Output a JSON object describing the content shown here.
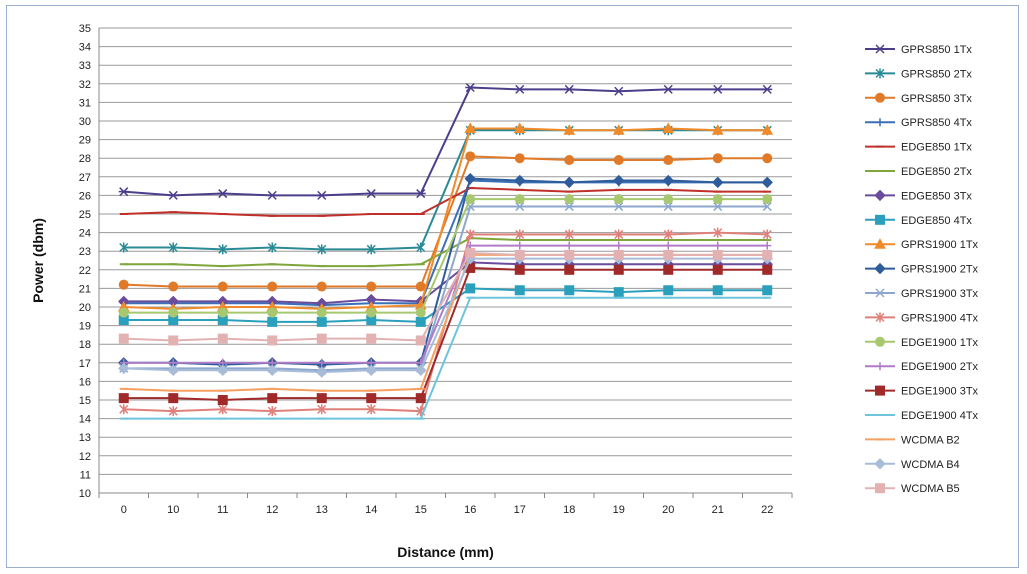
{
  "chart_data": {
    "type": "line",
    "title": "",
    "xlabel": "Distance (mm)",
    "ylabel": "Power (dbm)",
    "categories": [
      "0",
      "10",
      "11",
      "12",
      "13",
      "14",
      "15",
      "16",
      "17",
      "18",
      "19",
      "20",
      "21",
      "22"
    ],
    "ylim": [
      10,
      35
    ],
    "ytick_step": 1,
    "grid": "horizontal",
    "legend_position": "right",
    "series": [
      {
        "name": "GPRS850 1Tx",
        "color": "#4b3f8c",
        "marker": "x-star",
        "values": [
          26.2,
          26.0,
          26.1,
          26.0,
          26.0,
          26.1,
          26.1,
          31.8,
          31.7,
          31.7,
          31.6,
          31.7,
          31.7,
          31.7
        ]
      },
      {
        "name": "GPRS850 2Tx",
        "color": "#2a8b96",
        "marker": "asterisk",
        "values": [
          23.2,
          23.2,
          23.1,
          23.2,
          23.1,
          23.1,
          23.2,
          29.5,
          29.5,
          29.5,
          29.5,
          29.5,
          29.5,
          29.5
        ]
      },
      {
        "name": "GPRS850 3Tx",
        "color": "#e07a28",
        "marker": "circle",
        "values": [
          21.2,
          21.1,
          21.1,
          21.1,
          21.1,
          21.1,
          21.1,
          28.1,
          28.0,
          27.9,
          27.9,
          27.9,
          28.0,
          28.0
        ]
      },
      {
        "name": "GPRS850 4Tx",
        "color": "#3a70b8",
        "marker": "plus",
        "values": [
          20.2,
          20.2,
          20.2,
          20.2,
          20.1,
          20.2,
          20.2,
          26.8,
          26.7,
          26.7,
          26.7,
          26.7,
          26.7,
          26.7
        ]
      },
      {
        "name": "EDGE850 1Tx",
        "color": "#c0302a",
        "marker": "dash",
        "values": [
          25.0,
          25.1,
          25.0,
          24.9,
          24.9,
          25.0,
          25.0,
          26.4,
          26.3,
          26.2,
          26.3,
          26.3,
          26.2,
          26.2
        ]
      },
      {
        "name": "EDGE850 2Tx",
        "color": "#7fa63a",
        "marker": "dash",
        "values": [
          22.3,
          22.3,
          22.2,
          22.3,
          22.2,
          22.2,
          22.3,
          23.7,
          23.6,
          23.6,
          23.6,
          23.6,
          23.6,
          23.6
        ]
      },
      {
        "name": "EDGE850 3Tx",
        "color": "#6a4c9c",
        "marker": "diamond",
        "values": [
          20.3,
          20.3,
          20.3,
          20.3,
          20.2,
          20.4,
          20.3,
          22.4,
          22.3,
          22.3,
          22.3,
          22.3,
          22.3,
          22.3
        ]
      },
      {
        "name": "EDGE850 4Tx",
        "color": "#2aa0bd",
        "marker": "square",
        "values": [
          19.3,
          19.3,
          19.3,
          19.2,
          19.2,
          19.3,
          19.2,
          21.0,
          20.9,
          20.9,
          20.8,
          20.9,
          20.9,
          20.9
        ]
      },
      {
        "name": "GPRS1900 1Tx",
        "color": "#f08a2a",
        "marker": "triangle",
        "values": [
          20.0,
          19.9,
          20.0,
          20.0,
          19.9,
          20.0,
          20.1,
          29.6,
          29.6,
          29.5,
          29.5,
          29.6,
          29.5,
          29.5
        ]
      },
      {
        "name": "GPRS1900 2Tx",
        "color": "#2f5c9a",
        "marker": "diamond",
        "values": [
          17.0,
          17.0,
          16.9,
          17.0,
          16.9,
          17.0,
          17.0,
          26.9,
          26.8,
          26.7,
          26.8,
          26.8,
          26.7,
          26.7
        ]
      },
      {
        "name": "GPRS1900 3Tx",
        "color": "#8ea7cf",
        "marker": "x",
        "values": [
          16.7,
          16.7,
          16.7,
          16.7,
          16.6,
          16.7,
          16.7,
          25.4,
          25.4,
          25.4,
          25.4,
          25.4,
          25.4,
          25.4
        ]
      },
      {
        "name": "GPRS1900 4Tx",
        "color": "#e0807a",
        "marker": "asterisk",
        "values": [
          14.5,
          14.4,
          14.5,
          14.4,
          14.5,
          14.5,
          14.4,
          23.9,
          23.9,
          23.9,
          23.9,
          23.9,
          24.0,
          23.9
        ]
      },
      {
        "name": "EDGE1900 1Tx",
        "color": "#a8c870",
        "marker": "circle",
        "values": [
          19.7,
          19.7,
          19.7,
          19.7,
          19.7,
          19.7,
          19.7,
          25.8,
          25.8,
          25.8,
          25.8,
          25.8,
          25.8,
          25.8
        ]
      },
      {
        "name": "EDGE1900 2Tx",
        "color": "#b07cc8",
        "marker": "plus",
        "values": [
          17.0,
          17.0,
          17.0,
          17.0,
          17.0,
          17.0,
          17.0,
          23.3,
          23.3,
          23.3,
          23.3,
          23.3,
          23.3,
          23.3
        ]
      },
      {
        "name": "EDGE1900 3Tx",
        "color": "#a02a2a",
        "marker": "square",
        "values": [
          15.1,
          15.1,
          15.0,
          15.1,
          15.1,
          15.1,
          15.1,
          22.1,
          22.0,
          22.0,
          22.0,
          22.0,
          22.0,
          22.0
        ]
      },
      {
        "name": "EDGE1900 4Tx",
        "color": "#6ec4dc",
        "marker": "dash",
        "values": [
          14.0,
          14.0,
          14.0,
          14.0,
          14.0,
          14.0,
          14.0,
          20.5,
          20.5,
          20.5,
          20.5,
          20.5,
          20.5,
          20.5
        ]
      },
      {
        "name": "WCDMA B2",
        "color": "#f5a060",
        "marker": "dash",
        "values": [
          15.6,
          15.5,
          15.5,
          15.6,
          15.5,
          15.5,
          15.6,
          22.8,
          22.8,
          22.8,
          22.8,
          22.8,
          22.8,
          22.8
        ]
      },
      {
        "name": "WCDMA B4",
        "color": "#a8bcd8",
        "marker": "diamond",
        "values": [
          16.7,
          16.6,
          16.6,
          16.6,
          16.5,
          16.6,
          16.6,
          22.6,
          22.6,
          22.6,
          22.6,
          22.6,
          22.6,
          22.6
        ]
      },
      {
        "name": "WCDMA B5",
        "color": "#e2b2b2",
        "marker": "square",
        "values": [
          18.3,
          18.2,
          18.3,
          18.2,
          18.3,
          18.3,
          18.2,
          22.9,
          22.8,
          22.8,
          22.8,
          22.8,
          22.8,
          22.8
        ]
      }
    ]
  }
}
